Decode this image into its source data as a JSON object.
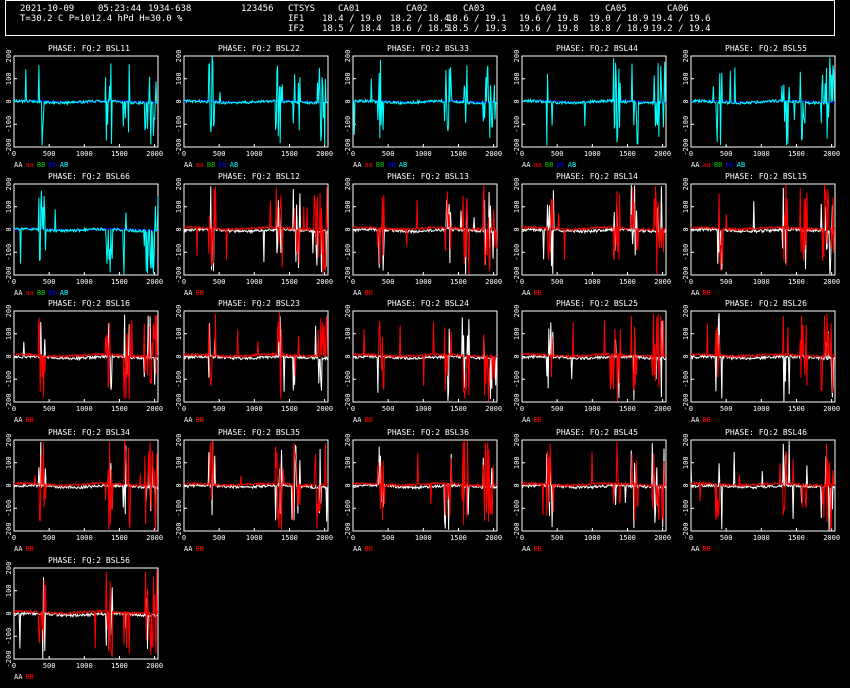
{
  "header": {
    "date": "2021-10-09",
    "time": "05:23:44",
    "range": "1934-638",
    "code": "123456",
    "weather": "T=30.2 C P=1012.4 hPd H=30.0 %",
    "ctsys": "CTSYS",
    "antennas": [
      "CA01",
      "CA02",
      "CA03",
      "CA04",
      "CA05",
      "CA06"
    ],
    "if1_label": "IF1",
    "if2_label": "IF2",
    "if1": [
      "18.4 / 19.0",
      "18.2 / 18.4",
      "18.6 / 19.1",
      "19.6 / 19.8",
      "19.0 / 18.9",
      "19.4 / 19.6"
    ],
    "if2": [
      "18.5 / 18.4",
      "18.6 / 18.5",
      "18.5 / 19.3",
      "19.6 / 19.8",
      "18.8 / 18.9",
      "19.2 / 19.4"
    ]
  },
  "colors": {
    "AA": "#ffffff",
    "aa": "#ff0000",
    "BB": "#00c000",
    "bb": "#0000ff",
    "AB": "#00ffff",
    "BB_red": "#ff0000"
  },
  "chart_data": {
    "type": "line",
    "xlim": [
      0,
      2048
    ],
    "ylim": [
      -200,
      200
    ],
    "xticks": [
      "0",
      "500",
      "1000",
      "1500",
      "2000"
    ],
    "yticks": [
      "-200",
      "-100",
      "0",
      "100",
      "200"
    ],
    "panels": [
      {
        "title": "PHASE: FQ:2 BSL11",
        "legend": [
          {
            "t": "AA",
            "c": "#ffffff"
          },
          {
            "t": "aa",
            "c": "#ff0000"
          },
          {
            "t": "BB",
            "c": "#00c000"
          },
          {
            "t": "bb",
            "c": "#0000ff"
          },
          {
            "t": "AB",
            "c": "#00ffff"
          }
        ],
        "series": "auto"
      },
      {
        "title": "PHASE: FQ:2 BSL22",
        "legend": [
          {
            "t": "AA",
            "c": "#ffffff"
          },
          {
            "t": "aa",
            "c": "#ff0000"
          },
          {
            "t": "BB",
            "c": "#00c000"
          },
          {
            "t": "bb",
            "c": "#0000ff"
          },
          {
            "t": "AB",
            "c": "#00ffff"
          }
        ],
        "series": "auto"
      },
      {
        "title": "PHASE: FQ:2 BSL33",
        "legend": [
          {
            "t": "AA",
            "c": "#ffffff"
          },
          {
            "t": "aa",
            "c": "#ff0000"
          },
          {
            "t": "BB",
            "c": "#00c000"
          },
          {
            "t": "bb",
            "c": "#0000ff"
          },
          {
            "t": "AB",
            "c": "#00ffff"
          }
        ],
        "series": "auto"
      },
      {
        "title": "PHASE: FQ:2 BSL44",
        "legend": [
          {
            "t": "AA",
            "c": "#ffffff"
          },
          {
            "t": "aa",
            "c": "#ff0000"
          },
          {
            "t": "BB",
            "c": "#00c000"
          },
          {
            "t": "bb",
            "c": "#0000ff"
          },
          {
            "t": "AB",
            "c": "#00ffff"
          }
        ],
        "series": "auto"
      },
      {
        "title": "PHASE: FQ:2 BSL55",
        "legend": [
          {
            "t": "AA",
            "c": "#ffffff"
          },
          {
            "t": "aa",
            "c": "#ff0000"
          },
          {
            "t": "BB",
            "c": "#00c000"
          },
          {
            "t": "bb",
            "c": "#0000ff"
          },
          {
            "t": "AB",
            "c": "#00ffff"
          }
        ],
        "series": "auto"
      },
      {
        "title": "PHASE: FQ:2 BSL66",
        "legend": [
          {
            "t": "AA",
            "c": "#ffffff"
          },
          {
            "t": "aa",
            "c": "#ff0000"
          },
          {
            "t": "BB",
            "c": "#00c000"
          },
          {
            "t": "bb",
            "c": "#0000ff"
          },
          {
            "t": "AB",
            "c": "#00ffff"
          }
        ],
        "series": "auto"
      },
      {
        "title": "PHASE: FQ:2 BSL12",
        "legend": [
          {
            "t": "AA",
            "c": "#ffffff"
          },
          {
            "t": "BB",
            "c": "#ff0000"
          }
        ],
        "series": "auto"
      },
      {
        "title": "PHASE: FQ:2 BSL13",
        "legend": [
          {
            "t": "AA",
            "c": "#ffffff"
          },
          {
            "t": "BB",
            "c": "#ff0000"
          }
        ],
        "series": "auto"
      },
      {
        "title": "PHASE: FQ:2 BSL14",
        "legend": [
          {
            "t": "AA",
            "c": "#ffffff"
          },
          {
            "t": "BB",
            "c": "#ff0000"
          }
        ],
        "series": "auto"
      },
      {
        "title": "PHASE: FQ:2 BSL15",
        "legend": [
          {
            "t": "AA",
            "c": "#ffffff"
          },
          {
            "t": "BB",
            "c": "#ff0000"
          }
        ],
        "series": "auto"
      },
      {
        "title": "PHASE: FQ:2 BSL16",
        "legend": [
          {
            "t": "AA",
            "c": "#ffffff"
          },
          {
            "t": "BB",
            "c": "#ff0000"
          }
        ],
        "series": "auto"
      },
      {
        "title": "PHASE: FQ:2 BSL23",
        "legend": [
          {
            "t": "AA",
            "c": "#ffffff"
          },
          {
            "t": "BB",
            "c": "#ff0000"
          }
        ],
        "series": "auto"
      },
      {
        "title": "PHASE: FQ:2 BSL24",
        "legend": [
          {
            "t": "AA",
            "c": "#ffffff"
          },
          {
            "t": "BB",
            "c": "#ff0000"
          }
        ],
        "series": "auto"
      },
      {
        "title": "PHASE: FQ:2 BSL25",
        "legend": [
          {
            "t": "AA",
            "c": "#ffffff"
          },
          {
            "t": "BB",
            "c": "#ff0000"
          }
        ],
        "series": "auto"
      },
      {
        "title": "PHASE: FQ:2 BSL26",
        "legend": [
          {
            "t": "AA",
            "c": "#ffffff"
          },
          {
            "t": "BB",
            "c": "#ff0000"
          }
        ],
        "series": "auto"
      },
      {
        "title": "PHASE: FQ:2 BSL34",
        "legend": [
          {
            "t": "AA",
            "c": "#ffffff"
          },
          {
            "t": "BB",
            "c": "#ff0000"
          }
        ],
        "series": "auto"
      },
      {
        "title": "PHASE: FQ:2 BSL35",
        "legend": [
          {
            "t": "AA",
            "c": "#ffffff"
          },
          {
            "t": "BB",
            "c": "#ff0000"
          }
        ],
        "series": "auto"
      },
      {
        "title": "PHASE: FQ:2 BSL36",
        "legend": [
          {
            "t": "AA",
            "c": "#ffffff"
          },
          {
            "t": "BB",
            "c": "#ff0000"
          }
        ],
        "series": "auto"
      },
      {
        "title": "PHASE: FQ:2 BSL45",
        "legend": [
          {
            "t": "AA",
            "c": "#ffffff"
          },
          {
            "t": "BB",
            "c": "#ff0000"
          }
        ],
        "series": "auto"
      },
      {
        "title": "PHASE: FQ:2 BSL46",
        "legend": [
          {
            "t": "AA",
            "c": "#ffffff"
          },
          {
            "t": "BB",
            "c": "#ff0000"
          }
        ],
        "series": "auto"
      },
      {
        "title": "PHASE: FQ:2 BSL56",
        "legend": [
          {
            "t": "AA",
            "c": "#ffffff"
          },
          {
            "t": "BB",
            "c": "#ff0000"
          }
        ],
        "series": "auto"
      }
    ]
  }
}
